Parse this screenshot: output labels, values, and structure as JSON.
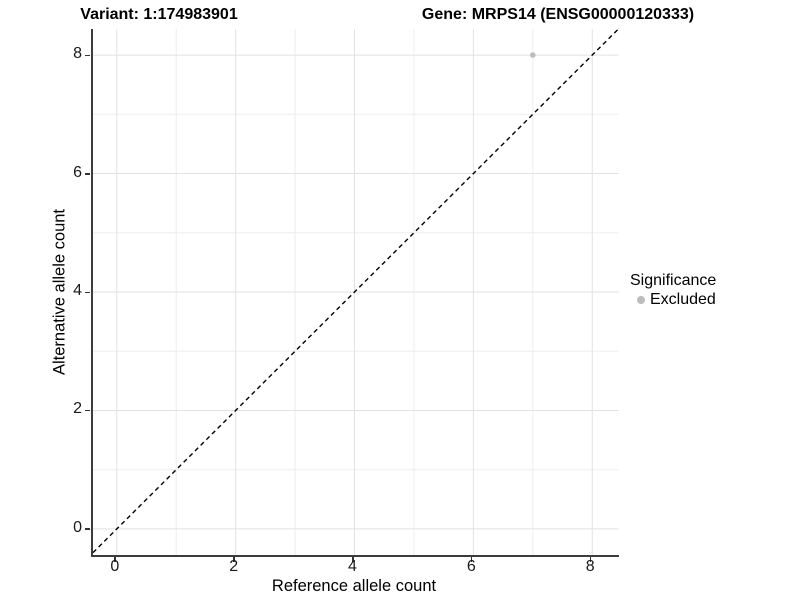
{
  "header": {
    "title_left": "Variant: 1:174983901",
    "title_right": "Gene: MRPS14 (ENSG00000120333)"
  },
  "chart_data": {
    "type": "scatter",
    "title_left": "Variant: 1:174983901",
    "title_right": "Gene: MRPS14 (ENSG00000120333)",
    "xlabel": "Reference allele count",
    "ylabel": "Alternative allele count",
    "xlim": [
      -0.4,
      8.45
    ],
    "ylim": [
      -0.44,
      8.44
    ],
    "x_ticks": [
      0,
      2,
      4,
      6,
      8
    ],
    "y_ticks": [
      0,
      2,
      4,
      6,
      8
    ],
    "grid_lines_at": [
      0,
      1,
      2,
      3,
      4,
      5,
      6,
      7,
      8
    ],
    "grid": "on",
    "points": [
      {
        "x": 7,
        "y": 8,
        "series": "Excluded"
      }
    ],
    "reference_line": {
      "style": "dashed",
      "equation": "y = x"
    },
    "legend": {
      "title": "Significance",
      "position": "right",
      "entries": [
        {
          "label": "Excluded",
          "color": "#bcbcbc"
        }
      ]
    },
    "colors": {
      "point": "#bcbcbc",
      "grid_major": "#e2e2e2",
      "grid_minor": "#ededed",
      "axis_line": "#3c3c3c",
      "dashed_line": "#000000",
      "tick_text": "#1a1a1a"
    }
  }
}
